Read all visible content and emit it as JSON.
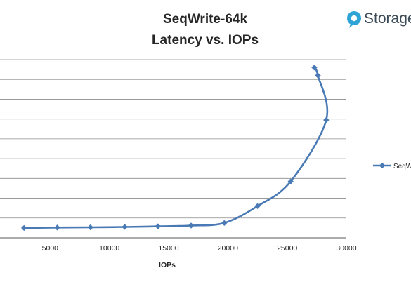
{
  "chart_data": {
    "type": "scatter",
    "title_lines": [
      "SeqWrite-64k",
      "Latency vs. IOPs"
    ],
    "xlabel": "IOPs",
    "ylabel": "",
    "xlim": [
      0,
      30000
    ],
    "x_ticks": [
      5000,
      10000,
      15000,
      20000,
      25000,
      30000
    ],
    "x_tick_labels": [
      "5000",
      "10000",
      "15000",
      "20000",
      "25000",
      "30000"
    ],
    "ylim": [
      0,
      9
    ],
    "y_gridlines": [
      1,
      2,
      3,
      4,
      5,
      6,
      7,
      8,
      9
    ],
    "grid": "horizontal",
    "legend_position": "right",
    "series": [
      {
        "name": "SeqW",
        "color": "#4a7ab5",
        "marker": "diamond",
        "line": "smooth",
        "points": [
          {
            "x": 2800,
            "y": 0.5
          },
          {
            "x": 5600,
            "y": 0.52
          },
          {
            "x": 8400,
            "y": 0.53
          },
          {
            "x": 11300,
            "y": 0.55
          },
          {
            "x": 14100,
            "y": 0.58
          },
          {
            "x": 16900,
            "y": 0.62
          },
          {
            "x": 19700,
            "y": 0.75
          },
          {
            "x": 22500,
            "y": 1.6
          },
          {
            "x": 25300,
            "y": 2.85
          },
          {
            "x": 28300,
            "y": 5.95
          },
          {
            "x": 27600,
            "y": 8.2
          },
          {
            "x": 27300,
            "y": 8.6
          }
        ]
      }
    ]
  },
  "logo": {
    "icon": "storagereview-logo-icon",
    "text": "Storage",
    "color": "#2ea3d6"
  }
}
